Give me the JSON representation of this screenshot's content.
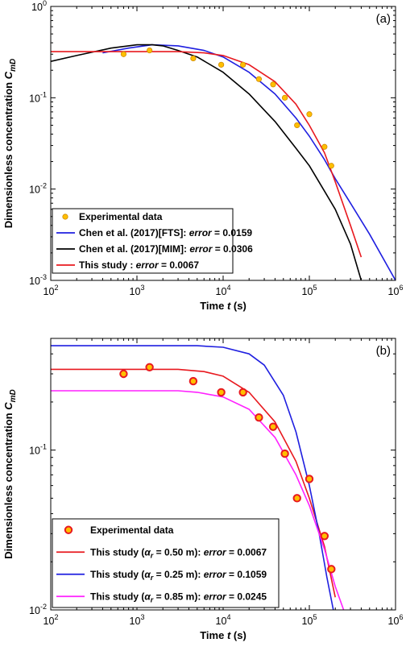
{
  "chart_data": [
    {
      "type": "line",
      "panel_label": "(a)",
      "xlabel": "Time t (s)",
      "ylabel": "Dimensionless concentration C_mD",
      "xscale": "log",
      "yscale": "log",
      "xlim": [
        100,
        1000000
      ],
      "ylim": [
        0.001,
        1
      ],
      "x_tick_labels": [
        "10^2",
        "10^3",
        "10^4",
        "10^5",
        "10^6"
      ],
      "y_tick_labels": [
        "10^-3",
        "10^-2",
        "10^-1",
        "10^0"
      ],
      "legend_position": "bottom-left",
      "colors": {
        "experimental": "#ffbf00",
        "fts": "#1f1fe0",
        "mim": "#000000",
        "this_study": "#e8191f"
      },
      "series": [
        {
          "name": "Experimental data",
          "legend_parts": [
            "Experimental data"
          ],
          "kind": "scatter",
          "color": "#ffbf00",
          "x": [
            700,
            1400,
            4500,
            9500,
            17000,
            26000,
            38000,
            52000,
            72000,
            100000,
            150000,
            180000
          ],
          "y": [
            0.3,
            0.33,
            0.27,
            0.23,
            0.23,
            0.16,
            0.14,
            0.1,
            0.05,
            0.066,
            0.029,
            0.018
          ]
        },
        {
          "name": "Chen et al. (2017)[FTS]",
          "legend_parts": [
            "Chen et al. (2017)[FTS]: ",
            "error",
            " = 0.0159"
          ],
          "kind": "line",
          "color": "#1f1fe0",
          "x": [
            400,
            800,
            1500,
            3000,
            6000,
            10000,
            20000,
            40000,
            70000,
            100000,
            150000,
            200000,
            300000,
            500000,
            1000000
          ],
          "y": [
            0.31,
            0.35,
            0.38,
            0.37,
            0.33,
            0.28,
            0.19,
            0.11,
            0.06,
            0.038,
            0.021,
            0.013,
            0.007,
            0.0032,
            0.001
          ]
        },
        {
          "name": "Chen et al. (2017)[MIM]",
          "legend_parts": [
            "Chen et al. (2017)[MIM]: ",
            "error",
            " = 0.0306"
          ],
          "kind": "line",
          "color": "#000000",
          "x": [
            100,
            200,
            500,
            1000,
            1500,
            2000,
            3000,
            5000,
            10000,
            20000,
            40000,
            70000,
            100000,
            150000,
            200000,
            300000,
            400000
          ],
          "y": [
            0.25,
            0.29,
            0.35,
            0.38,
            0.38,
            0.37,
            0.33,
            0.28,
            0.19,
            0.11,
            0.055,
            0.028,
            0.018,
            0.0095,
            0.006,
            0.0025,
            0.001
          ]
        },
        {
          "name": "This study",
          "legend_parts": [
            "This study : ",
            "error",
            " = 0.0067"
          ],
          "kind": "line",
          "color": "#e8191f",
          "x": [
            100,
            500,
            1000,
            3000,
            6000,
            10000,
            20000,
            40000,
            70000,
            100000,
            150000,
            200000,
            300000,
            400000
          ],
          "y": [
            0.32,
            0.32,
            0.32,
            0.32,
            0.31,
            0.29,
            0.23,
            0.15,
            0.085,
            0.05,
            0.025,
            0.012,
            0.004,
            0.0018
          ]
        }
      ]
    },
    {
      "type": "line",
      "panel_label": "(b)",
      "xlabel": "Time t (s)",
      "ylabel": "Dimensionless concentration C_mD",
      "xscale": "log",
      "yscale": "log",
      "xlim": [
        100,
        1000000
      ],
      "ylim": [
        0.01,
        0.5
      ],
      "x_tick_labels": [
        "10^2",
        "10^3",
        "10^4",
        "10^5",
        "10^6"
      ],
      "y_tick_labels": [
        "10^-2",
        "10^-1"
      ],
      "legend_position": "bottom-left",
      "colors": {
        "experimental_face": "#ffbf00",
        "experimental_edge": "#e8191f",
        "ar_050": "#e8191f",
        "ar_025": "#1f1fe0",
        "ar_085": "#ff20ff"
      },
      "series": [
        {
          "name": "Experimental data",
          "legend_parts": [
            "Experimental data"
          ],
          "kind": "scatter",
          "color": "#ffbf00",
          "x": [
            700,
            1400,
            4500,
            9500,
            17000,
            26000,
            38000,
            52000,
            72000,
            100000,
            150000,
            180000
          ],
          "y": [
            0.3,
            0.33,
            0.27,
            0.23,
            0.23,
            0.16,
            0.14,
            0.095,
            0.05,
            0.066,
            0.029,
            0.018
          ]
        },
        {
          "name": "This study (αr = 0.50 m)",
          "legend_parts": [
            "This study (",
            "α",
            "r",
            " = 0.50 m): ",
            "error",
            " = 0.0067"
          ],
          "kind": "line",
          "color": "#e8191f",
          "x": [
            100,
            1000,
            3000,
            6000,
            10000,
            20000,
            40000,
            70000,
            100000,
            150000,
            200000
          ],
          "y": [
            0.32,
            0.32,
            0.32,
            0.31,
            0.29,
            0.23,
            0.15,
            0.085,
            0.05,
            0.025,
            0.012
          ]
        },
        {
          "name": "This study (αr = 0.25 m)",
          "legend_parts": [
            "This study (",
            "α",
            "r",
            " = 0.25 m): ",
            "error",
            " = 0.1059"
          ],
          "kind": "line",
          "color": "#1f1fe0",
          "x": [
            100,
            1000,
            5000,
            10000,
            20000,
            30000,
            50000,
            70000,
            100000,
            130000,
            160000,
            190000
          ],
          "y": [
            0.45,
            0.45,
            0.45,
            0.44,
            0.4,
            0.34,
            0.22,
            0.13,
            0.06,
            0.03,
            0.016,
            0.01
          ]
        },
        {
          "name": "This study (αr = 0.85 m)",
          "legend_parts": [
            "This study (",
            "α",
            "r",
            " = 0.85 m): ",
            "error",
            " = 0.0245"
          ],
          "kind": "line",
          "color": "#ff20ff",
          "x": [
            100,
            1000,
            3000,
            5000,
            10000,
            20000,
            40000,
            70000,
            100000,
            150000,
            200000,
            250000
          ],
          "y": [
            0.235,
            0.235,
            0.235,
            0.23,
            0.215,
            0.18,
            0.12,
            0.07,
            0.045,
            0.024,
            0.014,
            0.01
          ]
        }
      ]
    }
  ]
}
